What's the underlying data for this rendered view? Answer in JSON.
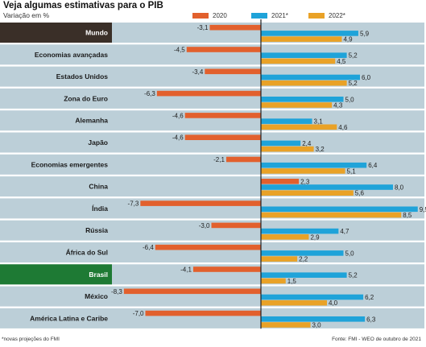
{
  "title": "Veja algumas estimativas para o PIB",
  "subtitle": "Variação em %",
  "footnote": "*novas projeções do FMI",
  "source": "Fonte: FMI - WEO de outubro de 2021",
  "colors": {
    "row_bg": "#bccfd8",
    "highlight_mundo": "#3a2f28",
    "highlight_brasil": "#1e7a34",
    "axis": "#222222"
  },
  "chart_data": {
    "type": "bar",
    "orientation": "horizontal",
    "categories": [
      "Mundo",
      "Economias avançadas",
      "Estados Unidos",
      "Zona do Euro",
      "Alemanha",
      "Japão",
      "Economias emergentes",
      "China",
      "Índia",
      "Rússia",
      "África do Sul",
      "Brasil",
      "México",
      "América Latina e Caribe"
    ],
    "highlighted_categories": [
      "Mundo",
      "Brasil"
    ],
    "series": [
      {
        "name": "2020",
        "color": "#e2602d",
        "values": [
          -3.1,
          -4.5,
          -3.4,
          -6.3,
          -4.6,
          -4.6,
          -2.1,
          2.3,
          -7.3,
          -3.0,
          -6.4,
          -4.1,
          -8.3,
          -7.0
        ]
      },
      {
        "name": "2021*",
        "color": "#1fa3d9",
        "values": [
          5.9,
          5.2,
          6.0,
          5.0,
          3.1,
          2.4,
          6.4,
          8.0,
          9.5,
          4.7,
          5.0,
          5.2,
          6.2,
          6.3
        ]
      },
      {
        "name": "2022*",
        "color": "#e9a227",
        "values": [
          4.9,
          4.5,
          5.2,
          4.3,
          4.6,
          3.2,
          5.1,
          5.6,
          8.5,
          2.9,
          2.2,
          1.5,
          4.0,
          3.0
        ]
      }
    ],
    "xlim": [
      -8.8,
      10.0
    ],
    "legend_position": "top-center",
    "grid": false,
    "decimal_separator": ","
  }
}
